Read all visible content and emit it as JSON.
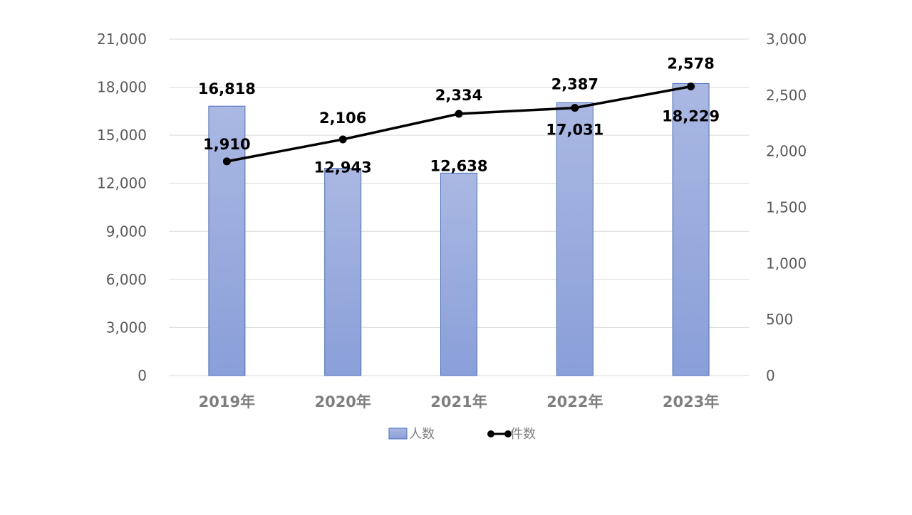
{
  "chart_data": {
    "type": "bar",
    "categories": [
      "2019年",
      "2020年",
      "2021年",
      "2022年",
      "2023年"
    ],
    "series": [
      {
        "name": "人数",
        "type": "bar",
        "axis": "left",
        "values": [
          16818,
          12943,
          12638,
          17031,
          18229
        ],
        "labels": [
          "16,818",
          "12,943",
          "12,638",
          "17,031",
          "18,229"
        ]
      },
      {
        "name": "件数",
        "type": "line",
        "axis": "right",
        "values": [
          1910,
          2106,
          2334,
          2387,
          2578
        ],
        "labels": [
          "1,910",
          "2,106",
          "2,334",
          "2,387",
          "2,578"
        ]
      }
    ],
    "y_left": {
      "range": [
        0,
        21000
      ],
      "ticks": [
        0,
        3000,
        6000,
        9000,
        12000,
        15000,
        18000,
        21000
      ],
      "tick_labels": [
        "0",
        "3,000",
        "6,000",
        "9,000",
        "12,000",
        "15,000",
        "18,000",
        "21,000"
      ]
    },
    "y_right": {
      "range": [
        0,
        3000
      ],
      "ticks": [
        0,
        500,
        1000,
        1500,
        2000,
        2500,
        3000
      ],
      "tick_labels": [
        "0",
        "500",
        "1,000",
        "1,500",
        "2,000",
        "2,500",
        "3,000"
      ]
    },
    "grid": true,
    "legend_position": "bottom",
    "colors": {
      "bar_top": "#aab8e2",
      "bar_bottom": "#8a9fd9",
      "bar_stroke": "#4a6fbf",
      "line": "#000000",
      "grid": "#d9d9d9"
    }
  }
}
